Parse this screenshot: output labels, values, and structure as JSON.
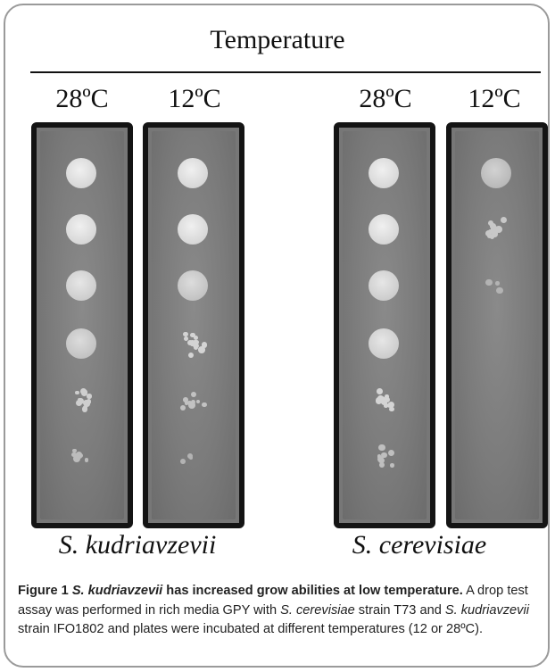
{
  "figure": {
    "header": "Temperature",
    "plates": [
      {
        "temperature": "28ºC",
        "spots": [
          1.0,
          1.0,
          0.95,
          0.9,
          0.6,
          0.3
        ]
      },
      {
        "temperature": "12ºC",
        "spots": [
          1.0,
          1.0,
          0.9,
          0.7,
          0.4,
          0.15
        ]
      },
      {
        "temperature": "28ºC",
        "spots": [
          1.0,
          1.0,
          0.95,
          0.95,
          0.7,
          0.35
        ]
      },
      {
        "temperature": "12ºC",
        "spots": [
          0.85,
          0.5,
          0.15,
          0.0,
          0.0,
          0.0
        ]
      }
    ],
    "species_labels": [
      "S. kudriavzevii",
      "S. cerevisiae"
    ]
  },
  "caption": {
    "label": "Figure 1",
    "title_italic": "S. kudriavzevii",
    "title_rest": "has increased grow abilities at low temperature.",
    "body_1": "A drop test assay was performed in rich media GPY with",
    "body_species_1": "S. cerevisiae",
    "body_2": "strain T73 and",
    "body_species_2": "S. kudriavzevii",
    "body_3": "strain IFO1802 and plates were incubated at different temperatures (12 or 28ºC)."
  }
}
